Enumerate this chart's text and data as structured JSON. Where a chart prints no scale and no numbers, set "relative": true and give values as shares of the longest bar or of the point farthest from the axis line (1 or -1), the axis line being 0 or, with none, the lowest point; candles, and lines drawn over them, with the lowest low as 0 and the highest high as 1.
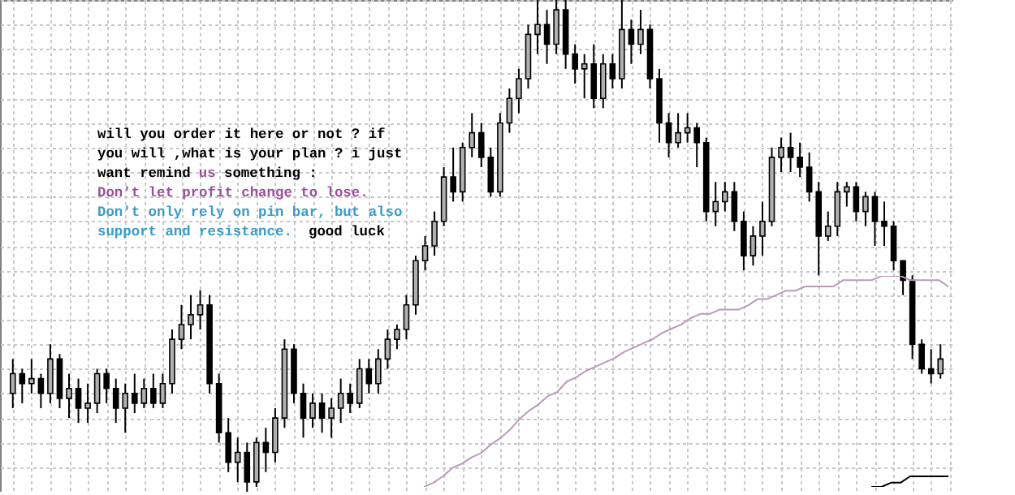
{
  "chart_data": [
    {
      "type": "candlestick",
      "relative": true,
      "grid": true,
      "tick_labels": false,
      "annotations": [
        "will you order it here or not ? if",
        "you will ,what is your plan ? i just",
        "want remind",
        "us",
        "something :",
        "Don't let profit change to lose.",
        "Don't only rely on pin bar, but also",
        "support and resistance.",
        "good luck"
      ],
      "categories": [
        null,
        null,
        null,
        null,
        null,
        null,
        null,
        null,
        null,
        null,
        null,
        null,
        null,
        null,
        null,
        null,
        null,
        null,
        null,
        null,
        null,
        null,
        null,
        null,
        null,
        null,
        null,
        null,
        null,
        null,
        null,
        null,
        null,
        null,
        null,
        null,
        null,
        null,
        null,
        null,
        null,
        null,
        null,
        null,
        null,
        null,
        null,
        null,
        null,
        null,
        null,
        null,
        null,
        null,
        null,
        null,
        null,
        null,
        null,
        null,
        null,
        null,
        null,
        null,
        null,
        null,
        null,
        null,
        null,
        null,
        null,
        null,
        null,
        null,
        null,
        null,
        null,
        null,
        null,
        null,
        null,
        null,
        null,
        null,
        null,
        null,
        null,
        null,
        null,
        null,
        null,
        null,
        null,
        null,
        null,
        null,
        null,
        null,
        null,
        null
      ],
      "ohlc": [
        [
          0.2,
          0.27,
          0.17,
          0.24
        ],
        [
          0.24,
          0.25,
          0.18,
          0.22
        ],
        [
          0.22,
          0.27,
          0.2,
          0.23
        ],
        [
          0.23,
          0.24,
          0.17,
          0.2
        ],
        [
          0.2,
          0.3,
          0.18,
          0.27
        ],
        [
          0.27,
          0.28,
          0.17,
          0.19
        ],
        [
          0.19,
          0.24,
          0.15,
          0.21
        ],
        [
          0.21,
          0.23,
          0.14,
          0.17
        ],
        [
          0.17,
          0.22,
          0.14,
          0.18
        ],
        [
          0.18,
          0.25,
          0.16,
          0.24
        ],
        [
          0.24,
          0.25,
          0.18,
          0.21
        ],
        [
          0.21,
          0.23,
          0.14,
          0.17
        ],
        [
          0.17,
          0.22,
          0.12,
          0.2
        ],
        [
          0.2,
          0.24,
          0.16,
          0.18
        ],
        [
          0.18,
          0.23,
          0.17,
          0.21
        ],
        [
          0.21,
          0.24,
          0.17,
          0.18
        ],
        [
          0.18,
          0.24,
          0.17,
          0.22
        ],
        [
          0.22,
          0.33,
          0.2,
          0.31
        ],
        [
          0.31,
          0.38,
          0.29,
          0.34
        ],
        [
          0.34,
          0.4,
          0.31,
          0.36
        ],
        [
          0.36,
          0.41,
          0.33,
          0.38
        ],
        [
          0.38,
          0.4,
          0.2,
          0.22
        ],
        [
          0.22,
          0.24,
          0.1,
          0.12
        ],
        [
          0.12,
          0.15,
          0.04,
          0.06
        ],
        [
          0.06,
          0.11,
          0.02,
          0.08
        ],
        [
          0.08,
          0.1,
          0,
          0.02
        ],
        [
          0.02,
          0.11,
          0.01,
          0.1
        ],
        [
          0.1,
          0.13,
          0.04,
          0.08
        ],
        [
          0.08,
          0.17,
          0.06,
          0.15
        ],
        [
          0.15,
          0.31,
          0.13,
          0.29
        ],
        [
          0.29,
          0.3,
          0.18,
          0.2
        ],
        [
          0.2,
          0.22,
          0.11,
          0.15
        ],
        [
          0.15,
          0.2,
          0.13,
          0.18
        ],
        [
          0.18,
          0.2,
          0.12,
          0.15
        ],
        [
          0.15,
          0.19,
          0.11,
          0.17
        ],
        [
          0.17,
          0.23,
          0.14,
          0.2
        ],
        [
          0.2,
          0.22,
          0.16,
          0.18
        ],
        [
          0.18,
          0.27,
          0.17,
          0.25
        ],
        [
          0.25,
          0.27,
          0.2,
          0.22
        ],
        [
          0.22,
          0.29,
          0.2,
          0.27
        ],
        [
          0.27,
          0.33,
          0.25,
          0.31
        ],
        [
          0.31,
          0.34,
          0.29,
          0.33
        ],
        [
          0.33,
          0.4,
          0.31,
          0.38
        ],
        [
          0.38,
          0.48,
          0.36,
          0.47
        ],
        [
          0.47,
          0.52,
          0.45,
          0.5
        ],
        [
          0.5,
          0.57,
          0.48,
          0.55
        ],
        [
          0.55,
          0.66,
          0.54,
          0.64
        ],
        [
          0.64,
          0.7,
          0.59,
          0.61
        ],
        [
          0.61,
          0.71,
          0.59,
          0.7
        ],
        [
          0.7,
          0.77,
          0.68,
          0.73
        ],
        [
          0.73,
          0.75,
          0.66,
          0.68
        ],
        [
          0.68,
          0.7,
          0.6,
          0.61
        ],
        [
          0.61,
          0.77,
          0.6,
          0.75
        ],
        [
          0.75,
          0.82,
          0.73,
          0.8
        ],
        [
          0.8,
          0.86,
          0.77,
          0.84
        ],
        [
          0.84,
          0.95,
          0.82,
          0.93
        ],
        [
          0.93,
          1,
          0.89,
          0.95
        ],
        [
          0.95,
          0.98,
          0.87,
          0.91
        ],
        [
          0.91,
          1,
          0.89,
          0.98
        ],
        [
          0.98,
          1,
          0.86,
          0.89
        ],
        [
          0.89,
          0.91,
          0.83,
          0.86
        ],
        [
          0.86,
          0.89,
          0.8,
          0.87
        ],
        [
          0.87,
          0.91,
          0.78,
          0.8
        ],
        [
          0.8,
          0.89,
          0.78,
          0.87
        ],
        [
          0.87,
          0.89,
          0.82,
          0.84
        ],
        [
          0.84,
          1,
          0.82,
          0.94
        ],
        [
          0.94,
          0.96,
          0.87,
          0.91
        ],
        [
          0.91,
          0.98,
          0.89,
          0.94
        ],
        [
          0.94,
          0.95,
          0.82,
          0.84
        ],
        [
          0.84,
          0.86,
          0.71,
          0.75
        ],
        [
          0.75,
          0.77,
          0.68,
          0.71
        ],
        [
          0.71,
          0.77,
          0.7,
          0.73
        ],
        [
          0.73,
          0.77,
          0.71,
          0.74
        ],
        [
          0.74,
          0.75,
          0.66,
          0.71
        ],
        [
          0.71,
          0.72,
          0.55,
          0.57
        ],
        [
          0.57,
          0.63,
          0.54,
          0.59
        ],
        [
          0.59,
          0.63,
          0.57,
          0.61
        ],
        [
          0.61,
          0.63,
          0.53,
          0.55
        ],
        [
          0.55,
          0.57,
          0.45,
          0.48
        ],
        [
          0.48,
          0.54,
          0.46,
          0.52
        ],
        [
          0.52,
          0.59,
          0.48,
          0.55
        ],
        [
          0.55,
          0.7,
          0.54,
          0.68
        ],
        [
          0.68,
          0.72,
          0.65,
          0.7
        ],
        [
          0.7,
          0.73,
          0.65,
          0.68
        ],
        [
          0.68,
          0.71,
          0.64,
          0.66
        ],
        [
          0.66,
          0.69,
          0.59,
          0.61
        ],
        [
          0.61,
          0.63,
          0.44,
          0.52
        ],
        [
          0.52,
          0.57,
          0.51,
          0.54
        ],
        [
          0.54,
          0.63,
          0.52,
          0.61
        ],
        [
          0.61,
          0.63,
          0.58,
          0.62
        ],
        [
          0.62,
          0.63,
          0.55,
          0.57
        ],
        [
          0.57,
          0.61,
          0.54,
          0.6
        ],
        [
          0.6,
          0.61,
          0.5,
          0.55
        ],
        [
          0.55,
          0.59,
          0.5,
          0.54
        ],
        [
          0.54,
          0.55,
          0.45,
          0.47
        ],
        [
          0.47,
          0.47,
          0.4,
          0.43
        ],
        [
          0.43,
          0.44,
          0.27,
          0.3
        ],
        [
          0.3,
          0.31,
          0.24,
          0.25
        ],
        [
          0.25,
          0.29,
          0.22,
          0.24
        ],
        [
          0.24,
          0.3,
          0.23,
          0.27
        ]
      ]
    },
    {
      "type": "line",
      "relative": true,
      "tick_labels": false,
      "categories": [
        null,
        null,
        null,
        null,
        null,
        null,
        null,
        null,
        null,
        null,
        null,
        null,
        null,
        null,
        null,
        null,
        null,
        null,
        null,
        null,
        null,
        null,
        null,
        null,
        null,
        null,
        null,
        null,
        null,
        null,
        null,
        null,
        null,
        null,
        null,
        null,
        null,
        null,
        null,
        null,
        null,
        null,
        null,
        null,
        null,
        null,
        null,
        null,
        null,
        null,
        null,
        null,
        null,
        null,
        null,
        null
      ],
      "series": [
        {
          "color": "#b89ab8",
          "values": [
            0,
            0.02,
            0.05,
            0.09,
            0.11,
            0.14,
            0.16,
            0.2,
            0.23,
            0.27,
            0.32,
            0.36,
            0.39,
            0.43,
            0.45,
            0.5,
            0.52,
            0.55,
            0.57,
            0.59,
            0.61,
            0.64,
            0.66,
            0.68,
            0.7,
            0.73,
            0.75,
            0.77,
            0.8,
            0.82,
            0.82,
            0.84,
            0.84,
            0.84,
            0.86,
            0.89,
            0.89,
            0.91,
            0.93,
            0.93,
            0.95,
            0.95,
            0.95,
            0.95,
            0.98,
            0.98,
            0.98,
            0.98,
            1,
            1,
            1,
            0.98,
            0.98,
            0.98,
            0.98,
            0.95
          ]
        },
        {
          "color": "#000000",
          "values": [
            null,
            null,
            null,
            null,
            null,
            null,
            null,
            null,
            null,
            null,
            null,
            null,
            null,
            null,
            null,
            null,
            null,
            null,
            null,
            null,
            null,
            null,
            null,
            null,
            null,
            null,
            null,
            null,
            null,
            null,
            null,
            null,
            null,
            null,
            null,
            null,
            null,
            null,
            null,
            null,
            null,
            null,
            null,
            null,
            null,
            null,
            null,
            0,
            0,
            0.02,
            0.02,
            0.05,
            0.05,
            0.05,
            0.05,
            0.05
          ]
        }
      ]
    }
  ]
}
